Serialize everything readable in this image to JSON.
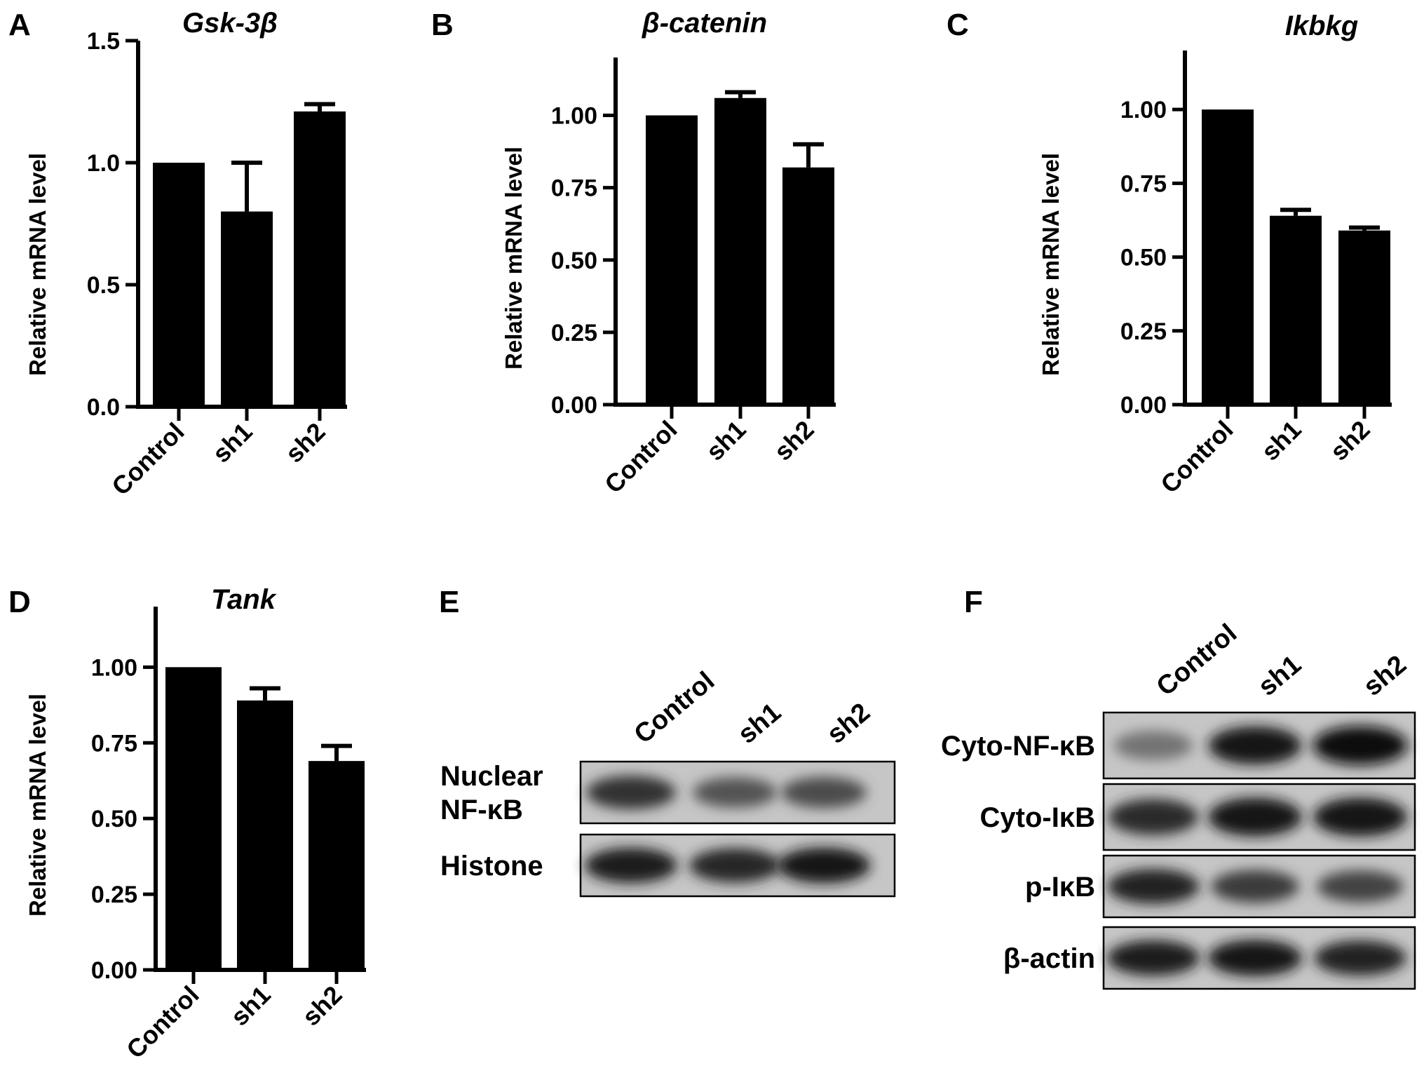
{
  "panels": [
    {
      "letter": "A"
    },
    {
      "letter": "B"
    },
    {
      "letter": "C"
    },
    {
      "letter": "D"
    },
    {
      "letter": "E"
    },
    {
      "letter": "F"
    }
  ],
  "chart_data": [
    {
      "type": "bar",
      "panel": "A",
      "title": "Gsk-3β",
      "ylabel": "Relative mRNA level",
      "xlabel": "",
      "categories": [
        "Control",
        "sh1",
        "sh2"
      ],
      "values": [
        1.0,
        0.8,
        1.21
      ],
      "errors": [
        0,
        0.2,
        0.03
      ],
      "ylim": [
        0,
        1.5
      ],
      "yticks": [
        "0.0",
        "0.5",
        "1.0",
        "1.5"
      ],
      "color": "#000000"
    },
    {
      "type": "bar",
      "panel": "B",
      "title": "β-catenin",
      "ylabel": "Relative mRNA level",
      "xlabel": "",
      "categories": [
        "Control",
        "sh1",
        "sh2"
      ],
      "values": [
        1.0,
        1.06,
        0.82
      ],
      "errors": [
        0,
        0.02,
        0.08
      ],
      "ylim": [
        0,
        1.2
      ],
      "yticks": [
        "0.00",
        "0.25",
        "0.50",
        "0.75",
        "1.00"
      ],
      "color": "#000000"
    },
    {
      "type": "bar",
      "panel": "C",
      "title": "Ikbkg",
      "ylabel": "Relative mRNA level",
      "xlabel": "",
      "categories": [
        "Control",
        "sh1",
        "sh2"
      ],
      "values": [
        1.0,
        0.64,
        0.59
      ],
      "errors": [
        0,
        0.02,
        0.01
      ],
      "ylim": [
        0,
        1.2
      ],
      "yticks": [
        "0.00",
        "0.25",
        "0.50",
        "0.75",
        "1.00"
      ],
      "color": "#000000"
    },
    {
      "type": "bar",
      "panel": "D",
      "title": "Tank",
      "ylabel": "Relative mRNA level",
      "xlabel": "",
      "categories": [
        "Control",
        "sh1",
        "sh2"
      ],
      "values": [
        1.0,
        0.89,
        0.69
      ],
      "errors": [
        0,
        0.04,
        0.05
      ],
      "ylim": [
        0,
        1.2
      ],
      "yticks": [
        "0.00",
        "0.25",
        "0.50",
        "0.75",
        "1.00"
      ],
      "color": "#000000"
    }
  ],
  "blots": {
    "E": {
      "lanes": [
        "Control",
        "sh1",
        "sh2"
      ],
      "rows": [
        {
          "label_lines": [
            "Nuclear",
            "NF-κB"
          ],
          "intensity": [
            0.8,
            0.62,
            0.66
          ]
        },
        {
          "label_lines": [
            "Histone"
          ],
          "intensity": [
            0.9,
            0.85,
            0.92
          ]
        }
      ]
    },
    "F": {
      "lanes": [
        "Control",
        "sh1",
        "sh2"
      ],
      "rows": [
        {
          "label_lines": [
            "Cyto-NF-κB"
          ],
          "intensity": [
            0.45,
            0.92,
            0.98
          ]
        },
        {
          "label_lines": [
            "Cyto-IκB"
          ],
          "intensity": [
            0.82,
            0.95,
            0.95
          ]
        },
        {
          "label_lines": [
            "p-IκB"
          ],
          "intensity": [
            0.88,
            0.75,
            0.7
          ]
        },
        {
          "label_lines": [
            "β-actin"
          ],
          "intensity": [
            0.9,
            0.95,
            0.88
          ]
        }
      ]
    }
  }
}
